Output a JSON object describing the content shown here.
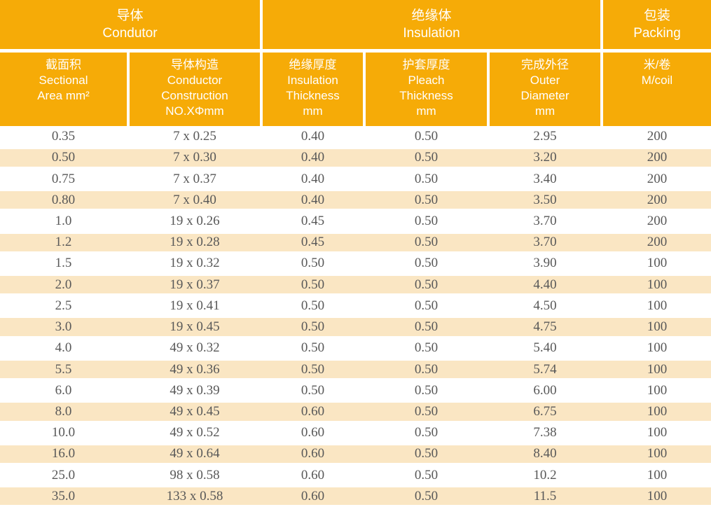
{
  "colors": {
    "accent_orange": "#f6ab07",
    "stripe_cream": "#fae6c3",
    "header_text": "#ffffff",
    "body_text": "#585858",
    "page_bg": "#ffffff"
  },
  "table": {
    "groups": [
      {
        "zh": "导体",
        "en": "Condutor"
      },
      {
        "zh": "绝缘体",
        "en": "Insulation"
      },
      {
        "zh": "包装",
        "en": "Packing"
      }
    ],
    "columns": [
      {
        "lines": [
          "截面积",
          "Sectional",
          "Area mm²"
        ]
      },
      {
        "lines": [
          "导体构造",
          "Conductor",
          "Construction",
          "NO.XΦmm"
        ]
      },
      {
        "lines": [
          "绝缘厚度",
          "Insulation",
          "Thickness",
          "mm"
        ]
      },
      {
        "lines": [
          "护套厚度",
          "Pleach",
          "Thickness",
          "mm"
        ]
      },
      {
        "lines": [
          "完成外径",
          "Outer",
          "Diameter",
          "mm"
        ]
      },
      {
        "lines": [
          "米/卷",
          "M/coil"
        ]
      }
    ],
    "rows": [
      [
        "0.35",
        "7 x 0.25",
        "0.40",
        "0.50",
        "2.95",
        "200"
      ],
      [
        "0.50",
        "7 x 0.30",
        "0.40",
        "0.50",
        "3.20",
        "200"
      ],
      [
        "0.75",
        "7 x 0.37",
        "0.40",
        "0.50",
        "3.40",
        "200"
      ],
      [
        "0.80",
        "7 x 0.40",
        "0.40",
        "0.50",
        "3.50",
        "200"
      ],
      [
        "1.0",
        "19 x 0.26",
        "0.45",
        "0.50",
        "3.70",
        "200"
      ],
      [
        "1.2",
        "19 x 0.28",
        "0.45",
        "0.50",
        "3.70",
        "200"
      ],
      [
        "1.5",
        "19 x 0.32",
        "0.50",
        "0.50",
        "3.90",
        "100"
      ],
      [
        "2.0",
        "19 x 0.37",
        "0.50",
        "0.50",
        "4.40",
        "100"
      ],
      [
        "2.5",
        "19 x 0.41",
        "0.50",
        "0.50",
        "4.50",
        "100"
      ],
      [
        "3.0",
        "19 x 0.45",
        "0.50",
        "0.50",
        "4.75",
        "100"
      ],
      [
        "4.0",
        "49 x 0.32",
        "0.50",
        "0.50",
        "5.40",
        "100"
      ],
      [
        "5.5",
        "49 x 0.36",
        "0.50",
        "0.50",
        "5.74",
        "100"
      ],
      [
        "6.0",
        "49 x 0.39",
        "0.50",
        "0.50",
        "6.00",
        "100"
      ],
      [
        "8.0",
        "49 x 0.45",
        "0.60",
        "0.50",
        "6.75",
        "100"
      ],
      [
        "10.0",
        "49 x 0.52",
        "0.60",
        "0.50",
        "7.38",
        "100"
      ],
      [
        "16.0",
        "49 x 0.64",
        "0.60",
        "0.50",
        "8.40",
        "100"
      ],
      [
        "25.0",
        "98 x 0.58",
        "0.60",
        "0.50",
        "10.2",
        "100"
      ],
      [
        "35.0",
        "133 x 0.58",
        "0.60",
        "0.50",
        "11.5",
        "100"
      ]
    ]
  }
}
